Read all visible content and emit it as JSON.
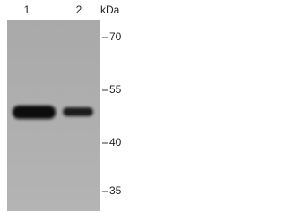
{
  "lanes": [
    "1",
    "2"
  ],
  "unit": "kDa",
  "markers": [
    "70",
    "55",
    "40",
    "35"
  ]
}
